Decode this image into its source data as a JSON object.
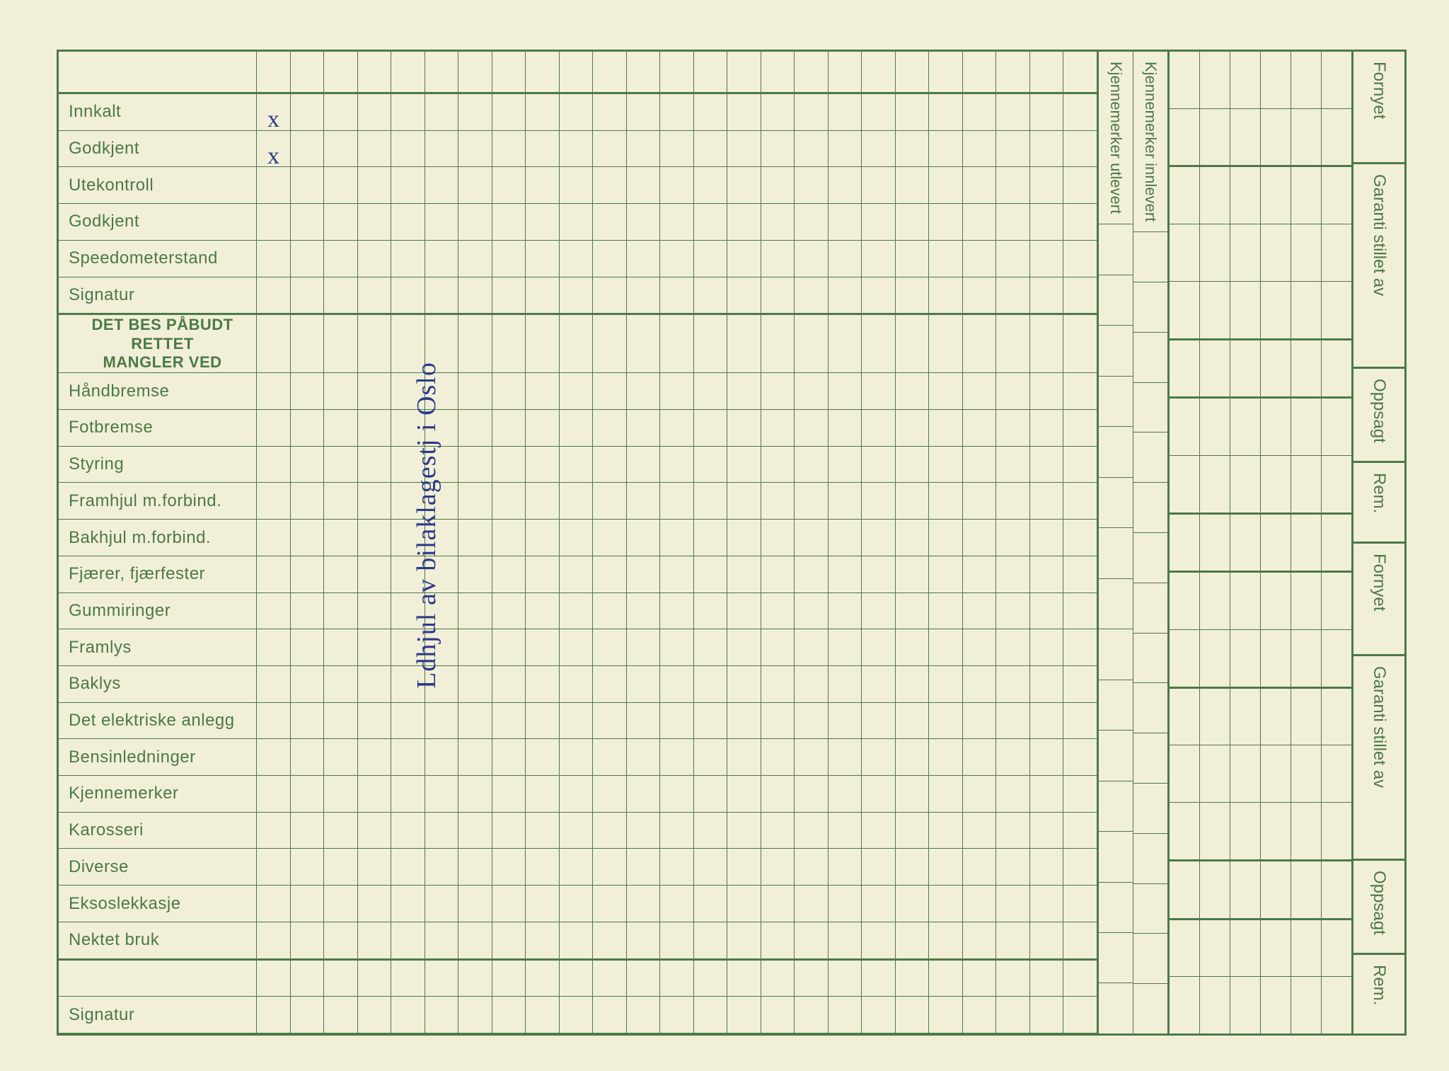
{
  "colors": {
    "grid": "#4a7a47",
    "paper": "#f2efd8",
    "ink": "#2a3a8a",
    "black_border": "#000000"
  },
  "main_rows": [
    {
      "label": "Innkalt",
      "heavy": false
    },
    {
      "label": "Godkjent",
      "heavy": false
    },
    {
      "label": "Utekontroll",
      "heavy": false
    },
    {
      "label": "Godkjent",
      "heavy": false
    },
    {
      "label": "Speedometerstand",
      "heavy": false
    },
    {
      "label": "Signatur",
      "heavy": true
    },
    {
      "label": "DET BES PÅBUDT RETTET MANGLER VED",
      "heavy": false,
      "section": true
    },
    {
      "label": "Håndbremse",
      "heavy": false
    },
    {
      "label": "Fotbremse",
      "heavy": false
    },
    {
      "label": "Styring",
      "heavy": false
    },
    {
      "label": "Framhjul m.forbind.",
      "heavy": false
    },
    {
      "label": "Bakhjul m.forbind.",
      "heavy": false
    },
    {
      "label": "Fjærer, fjærfester",
      "heavy": false
    },
    {
      "label": "Gummiringer",
      "heavy": false
    },
    {
      "label": "Framlys",
      "heavy": false
    },
    {
      "label": "Baklys",
      "heavy": false
    },
    {
      "label": "Det elektriske anlegg",
      "heavy": false
    },
    {
      "label": "Bensinledninger",
      "heavy": false
    },
    {
      "label": "Kjennemerker",
      "heavy": false
    },
    {
      "label": "Karosseri",
      "heavy": false
    },
    {
      "label": "Diverse",
      "heavy": false
    },
    {
      "label": "Eksoslekkasje",
      "heavy": false
    },
    {
      "label": "Nektet bruk",
      "heavy": true
    },
    {
      "label": "",
      "heavy": false
    },
    {
      "label": "Signatur",
      "heavy": false
    }
  ],
  "grid_columns": 25,
  "side_labels": {
    "left": "Kjennemerker utlevert",
    "right": "Kjennemerker innlevert"
  },
  "right_grid_columns": 6,
  "right_grid_breaks": [
    1,
    4,
    5,
    7,
    8,
    10,
    13,
    14,
    16
  ],
  "far_right_labels": [
    "Fornyet",
    "Garanti stillet av",
    "Oppsagt",
    "Rem.",
    "Fornyet",
    "Garanti stillet av",
    "Oppsagt",
    "Rem."
  ],
  "far_right_flex": [
    1.2,
    2.2,
    1.0,
    0.85,
    1.2,
    2.2,
    1.0,
    0.85
  ],
  "handwriting": {
    "mark1": "x",
    "mark2": "x",
    "vertical_text": "Ldhjul av bilaklagestj i Oslo"
  },
  "typography": {
    "label_fontsize": 24,
    "section_fontsize": 22,
    "vlabel_fontsize": 22,
    "far_right_fontsize": 24
  }
}
